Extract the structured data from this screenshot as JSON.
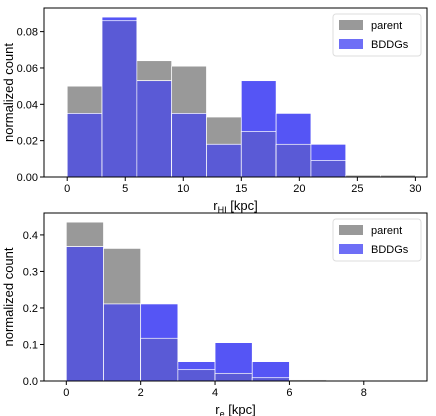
{
  "colors": {
    "parent": "#999999",
    "bddg": "#5555f5",
    "overlap": "#5a5ad6",
    "frame": "#000000",
    "edge": "#ffffff"
  },
  "chart_data": [
    {
      "type": "bar",
      "style": "overlapping histograms",
      "bin_edges": [
        0,
        3,
        6,
        9,
        12,
        15,
        18,
        21,
        24,
        27,
        30
      ],
      "series": [
        {
          "name": "parent",
          "values": [
            0.05,
            0.086,
            0.064,
            0.061,
            0.033,
            0.025,
            0.018,
            0.009,
            0.001,
            0.001
          ]
        },
        {
          "name": "BDDGs",
          "values": [
            0.035,
            0.088,
            0.053,
            0.035,
            0.018,
            0.053,
            0.035,
            0.018,
            0.0,
            0.0
          ]
        }
      ],
      "xlabel_main": "r",
      "xlabel_sub": "HI",
      "xlabel_rest": " [kpc]",
      "ylabel": "normalized count",
      "xlim": [
        -2,
        31
      ],
      "ylim": [
        0,
        0.093
      ],
      "xticks": [
        0,
        5,
        10,
        15,
        20,
        25,
        30
      ],
      "yticks": [
        0.0,
        0.02,
        0.04,
        0.06,
        0.08
      ],
      "ytick_labels": [
        "0.00",
        "0.02",
        "0.04",
        "0.06",
        "0.08"
      ],
      "legend": "top-right",
      "grid": false
    },
    {
      "type": "bar",
      "style": "overlapping histograms",
      "bin_edges": [
        0,
        1,
        2,
        3,
        4,
        5,
        6,
        7,
        8,
        9
      ],
      "series": [
        {
          "name": "parent",
          "values": [
            0.435,
            0.363,
            0.117,
            0.031,
            0.021,
            0.009,
            0.003,
            0.002,
            0.001
          ]
        },
        {
          "name": "BDDGs",
          "values": [
            0.368,
            0.211,
            0.211,
            0.053,
            0.105,
            0.053,
            0.0,
            0.0,
            0.0
          ]
        }
      ],
      "xlabel_main": "r",
      "xlabel_sub": "e",
      "xlabel_rest": " [kpc]",
      "ylabel": "normalized count",
      "xlim": [
        -0.6,
        9.7
      ],
      "ylim": [
        0,
        0.46
      ],
      "xticks": [
        0,
        2,
        4,
        6,
        8
      ],
      "yticks": [
        0.0,
        0.1,
        0.2,
        0.3,
        0.4
      ],
      "ytick_labels": [
        "0.0",
        "0.1",
        "0.2",
        "0.3",
        "0.4"
      ],
      "legend": "top-right",
      "grid": false
    }
  ]
}
